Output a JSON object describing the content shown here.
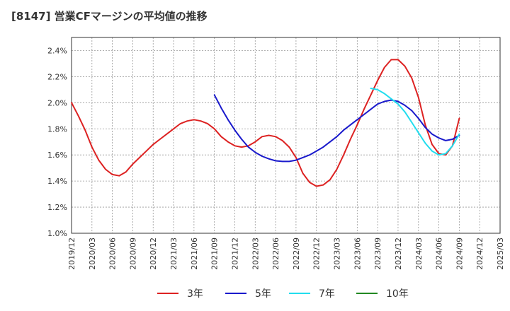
{
  "chart_data": {
    "type": "line",
    "title": "[8147]  営業CFマージンの平均値の推移",
    "xlabel": "",
    "ylabel": "",
    "ylim": [
      1.0,
      2.5
    ],
    "y_ticks": [
      "1.0%",
      "1.2%",
      "1.4%",
      "1.6%",
      "1.8%",
      "2.0%",
      "2.2%",
      "2.4%"
    ],
    "x_ticks": [
      "2019/12",
      "2020/03",
      "2020/06",
      "2020/09",
      "2020/12",
      "2021/03",
      "2021/06",
      "2021/09",
      "2021/12",
      "2022/03",
      "2022/06",
      "2022/09",
      "2022/12",
      "2023/03",
      "2023/06",
      "2023/09",
      "2023/12",
      "2024/03",
      "2024/06",
      "2024/09",
      "2024/12",
      "2025/03"
    ],
    "grid": true,
    "legend_position": "bottom",
    "series": [
      {
        "name": "3年",
        "color": "#dd2222",
        "x": [
          "2019/12",
          "2020/01",
          "2020/02",
          "2020/03",
          "2020/04",
          "2020/05",
          "2020/06",
          "2020/07",
          "2020/08",
          "2020/09",
          "2020/10",
          "2020/11",
          "2020/12",
          "2021/01",
          "2021/02",
          "2021/03",
          "2021/04",
          "2021/05",
          "2021/06",
          "2021/07",
          "2021/08",
          "2021/09",
          "2021/10",
          "2021/11",
          "2021/12",
          "2022/01",
          "2022/02",
          "2022/03",
          "2022/04",
          "2022/05",
          "2022/06",
          "2022/07",
          "2022/08",
          "2022/09",
          "2022/10",
          "2022/11",
          "2022/12",
          "2023/01",
          "2023/02",
          "2023/03",
          "2023/04",
          "2023/05",
          "2023/06",
          "2023/07",
          "2023/08",
          "2023/09",
          "2023/10",
          "2023/11",
          "2023/12",
          "2024/01",
          "2024/02",
          "2024/03",
          "2024/04",
          "2024/05",
          "2024/06",
          "2024/07",
          "2024/08",
          "2024/09"
        ],
        "values": [
          2.0,
          1.9,
          1.79,
          1.66,
          1.56,
          1.49,
          1.45,
          1.44,
          1.47,
          1.53,
          1.58,
          1.63,
          1.68,
          1.72,
          1.76,
          1.8,
          1.84,
          1.86,
          1.87,
          1.86,
          1.84,
          1.8,
          1.74,
          1.7,
          1.67,
          1.66,
          1.67,
          1.7,
          1.74,
          1.75,
          1.74,
          1.71,
          1.66,
          1.58,
          1.46,
          1.39,
          1.36,
          1.37,
          1.41,
          1.49,
          1.6,
          1.72,
          1.83,
          1.95,
          2.06,
          2.17,
          2.27,
          2.33,
          2.33,
          2.28,
          2.19,
          2.04,
          1.83,
          1.68,
          1.61,
          1.6,
          1.67,
          1.88
        ]
      },
      {
        "name": "5年",
        "color": "#1a1acc",
        "x": [
          "2021/09",
          "2021/10",
          "2021/11",
          "2021/12",
          "2022/01",
          "2022/02",
          "2022/03",
          "2022/04",
          "2022/05",
          "2022/06",
          "2022/07",
          "2022/08",
          "2022/09",
          "2022/10",
          "2022/11",
          "2022/12",
          "2023/01",
          "2023/02",
          "2023/03",
          "2023/04",
          "2023/05",
          "2023/06",
          "2023/07",
          "2023/08",
          "2023/09",
          "2023/10",
          "2023/11",
          "2023/12",
          "2024/01",
          "2024/02",
          "2024/03",
          "2024/04",
          "2024/05",
          "2024/06",
          "2024/07",
          "2024/08",
          "2024/09"
        ],
        "values": [
          2.06,
          1.96,
          1.87,
          1.79,
          1.72,
          1.66,
          1.62,
          1.59,
          1.57,
          1.555,
          1.55,
          1.55,
          1.56,
          1.58,
          1.6,
          1.63,
          1.66,
          1.7,
          1.74,
          1.79,
          1.83,
          1.87,
          1.91,
          1.95,
          1.99,
          2.01,
          2.02,
          2.01,
          1.98,
          1.94,
          1.88,
          1.81,
          1.76,
          1.73,
          1.71,
          1.72,
          1.75
        ]
      },
      {
        "name": "7年",
        "color": "#22ddee",
        "x": [
          "2023/08",
          "2023/09",
          "2023/10",
          "2023/11",
          "2023/12",
          "2024/01",
          "2024/02",
          "2024/03",
          "2024/04",
          "2024/05",
          "2024/06",
          "2024/07",
          "2024/08",
          "2024/09"
        ],
        "values": [
          2.11,
          2.1,
          2.07,
          2.03,
          1.99,
          1.93,
          1.85,
          1.77,
          1.69,
          1.63,
          1.6,
          1.61,
          1.67,
          1.76
        ]
      },
      {
        "name": "10年",
        "color": "#228822",
        "x": [],
        "values": []
      }
    ]
  }
}
